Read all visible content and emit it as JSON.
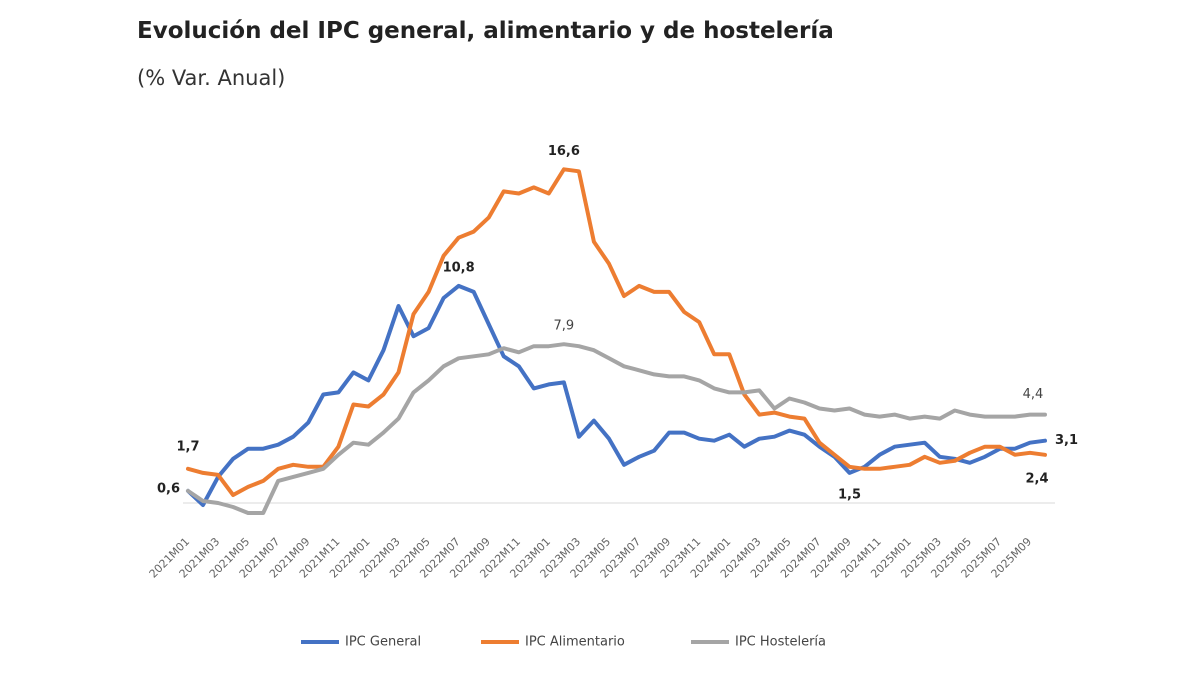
{
  "chart_data": {
    "type": "line",
    "title": "Evolución del IPC general, alimentario y de hostelería",
    "subtitle": "(% Var. Anual)",
    "categories": [
      "2021M01",
      null,
      "2021M03",
      null,
      "2021M05",
      null,
      "2021M07",
      null,
      "2021M09",
      null,
      "2021M11",
      null,
      "2022M01",
      null,
      "2022M03",
      null,
      "2022M05",
      null,
      "2022M07",
      null,
      "2022M09",
      null,
      "2022M11",
      null,
      "2023M01",
      null,
      "2023M03",
      null,
      "2023M05",
      null,
      "2023M07",
      null,
      "2023M09",
      null,
      "2023M11",
      null,
      "2024M01",
      null,
      "2024M03",
      null,
      "2024M05",
      null,
      "2024M07",
      null,
      "2024M09",
      null,
      "2024M11",
      null,
      "2025M01",
      null,
      "2025M03",
      null,
      "2025M05",
      null,
      "2025M07",
      null,
      "2025M09",
      null
    ],
    "series": [
      {
        "name": "IPC General",
        "color": "#4472c4",
        "values": [
          0.6,
          -0.1,
          1.3,
          2.2,
          2.7,
          2.7,
          2.9,
          3.3,
          4.0,
          5.4,
          5.5,
          6.5,
          6.1,
          7.6,
          9.8,
          8.3,
          8.7,
          10.2,
          10.8,
          10.5,
          8.9,
          7.3,
          6.8,
          5.7,
          5.9,
          6.0,
          3.3,
          4.1,
          3.2,
          1.9,
          2.3,
          2.6,
          3.5,
          3.5,
          3.2,
          3.1,
          3.4,
          2.8,
          3.2,
          3.3,
          3.6,
          3.4,
          2.8,
          2.3,
          1.5,
          1.8,
          2.4,
          2.8,
          2.9,
          3.0,
          2.3,
          2.2,
          2.0,
          2.3,
          2.7,
          2.7,
          3.0,
          3.1
        ],
        "value_labels": [
          "0,6",
          null,
          null,
          null,
          null,
          null,
          null,
          null,
          null,
          null,
          null,
          null,
          null,
          null,
          null,
          null,
          null,
          null,
          "10,8",
          null,
          null,
          null,
          null,
          null,
          null,
          null,
          null,
          null,
          null,
          null,
          null,
          null,
          null,
          null,
          null,
          null,
          null,
          null,
          null,
          null,
          null,
          null,
          null,
          null,
          "1,5",
          null,
          null,
          null,
          null,
          null,
          null,
          null,
          null,
          null,
          null,
          null,
          null,
          "3,1"
        ]
      },
      {
        "name": "IPC Alimentario",
        "color": "#ed7d31",
        "values": [
          1.7,
          1.5,
          1.4,
          0.4,
          0.8,
          1.1,
          1.7,
          1.9,
          1.8,
          1.8,
          2.8,
          4.9,
          4.8,
          5.4,
          6.5,
          9.4,
          10.5,
          12.3,
          13.2,
          13.5,
          14.2,
          15.5,
          15.4,
          15.7,
          15.4,
          16.6,
          16.5,
          13.0,
          11.9,
          10.3,
          10.8,
          10.5,
          10.5,
          9.5,
          9.0,
          7.4,
          7.4,
          5.4,
          4.4,
          4.5,
          4.3,
          4.2,
          3.0,
          2.4,
          1.8,
          1.7,
          1.7,
          1.8,
          1.9,
          2.3,
          2.0,
          2.1,
          2.5,
          2.8,
          2.8,
          2.4,
          2.5,
          2.4
        ],
        "value_labels": [
          "1,7",
          null,
          null,
          null,
          null,
          null,
          null,
          null,
          null,
          null,
          null,
          null,
          null,
          null,
          null,
          null,
          null,
          null,
          null,
          null,
          null,
          null,
          null,
          null,
          null,
          "16,6",
          null,
          null,
          null,
          null,
          null,
          null,
          null,
          null,
          null,
          null,
          null,
          null,
          null,
          null,
          null,
          null,
          null,
          null,
          null,
          null,
          null,
          null,
          null,
          null,
          null,
          null,
          null,
          null,
          null,
          null,
          null,
          "2,4"
        ]
      },
      {
        "name": "IPC Hostelería",
        "color": "#a5a5a5",
        "values": [
          0.6,
          0.1,
          0.0,
          -0.2,
          -0.5,
          -0.5,
          1.1,
          1.3,
          1.5,
          1.7,
          2.4,
          3.0,
          2.9,
          3.5,
          4.2,
          5.5,
          6.1,
          6.8,
          7.2,
          7.3,
          7.4,
          7.7,
          7.5,
          7.8,
          7.8,
          7.9,
          7.8,
          7.6,
          7.2,
          6.8,
          6.6,
          6.4,
          6.3,
          6.3,
          6.1,
          5.7,
          5.5,
          5.5,
          5.6,
          4.7,
          5.2,
          5.0,
          4.7,
          4.6,
          4.7,
          4.4,
          4.3,
          4.4,
          4.2,
          4.3,
          4.2,
          4.6,
          4.4,
          4.3,
          4.3,
          4.3,
          4.4,
          4.4
        ],
        "value_labels": [
          null,
          null,
          null,
          null,
          null,
          null,
          null,
          null,
          null,
          null,
          null,
          null,
          null,
          null,
          null,
          null,
          null,
          null,
          null,
          null,
          null,
          null,
          null,
          null,
          null,
          "7,9",
          null,
          null,
          null,
          null,
          null,
          null,
          null,
          null,
          null,
          null,
          null,
          null,
          null,
          null,
          null,
          null,
          null,
          null,
          null,
          null,
          null,
          null,
          null,
          null,
          null,
          null,
          null,
          null,
          null,
          null,
          null,
          "4,4"
        ]
      }
    ]
  }
}
